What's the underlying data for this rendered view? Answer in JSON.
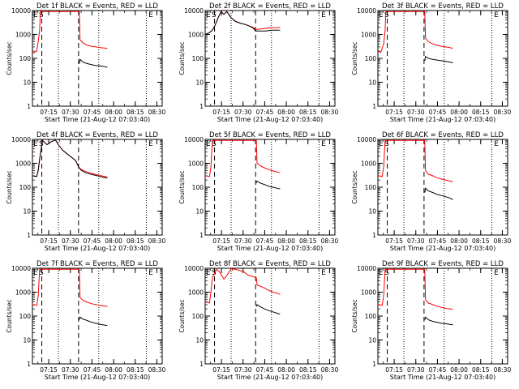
{
  "common": {
    "ylabel": "Counts/sec",
    "xlabel": "Start Time (21-Aug-12 07:03:40)",
    "x_tick_labels": [
      "07:15",
      "07:30",
      "07:45",
      "08:00",
      "08:15",
      "08:30"
    ],
    "y_tick_labels": [
      "1",
      "10",
      "100",
      "1000",
      "10000"
    ],
    "colors": {
      "events": "#000000",
      "lld": "#ff0000"
    }
  },
  "chart_data": [
    {
      "type": "line",
      "title": "Det 1f BLACK = Events, RED = LLD",
      "xlabel": "Start Time (21-Aug-12 07:03:40)",
      "ylabel": "Counts/sec",
      "x_unit": "minutes after 07:03:40",
      "xlim": [
        0,
        90
      ],
      "ylim": [
        1,
        10000
      ],
      "y_scale": "log",
      "x_ticks": [
        11.3,
        26.3,
        41.3,
        56.3,
        71.3,
        86.3
      ],
      "annotations": [
        "E",
        "S",
        "E"
      ],
      "dashed_lines_x": [
        6.5,
        32
      ],
      "dotted_lines_x": [
        18,
        46,
        79
      ],
      "series": [
        {
          "name": "LLD",
          "color": "#ff0000",
          "x": [
            0,
            1,
            2,
            3,
            4,
            5,
            5.5,
            32.5,
            33,
            35,
            38,
            41,
            44,
            47,
            50,
            52
          ],
          "y": [
            180,
            170,
            190,
            200,
            500,
            1500,
            9000,
            9000,
            600,
            450,
            350,
            320,
            300,
            280,
            270,
            260
          ]
        },
        {
          "name": "Events",
          "color": "#000000",
          "x": [
            32.5,
            33,
            35,
            38,
            41,
            44,
            47,
            50,
            52
          ],
          "y": [
            60,
            90,
            70,
            60,
            55,
            50,
            48,
            45,
            42
          ]
        }
      ]
    },
    {
      "type": "line",
      "title": "Det 2f BLACK = Events, RED = LLD",
      "xlabel": "Start Time (21-Aug-12 07:03:40)",
      "ylabel": "Counts/sec",
      "x_unit": "minutes after 07:03:40",
      "xlim": [
        0,
        90
      ],
      "ylim": [
        1,
        10000
      ],
      "y_scale": "log",
      "x_ticks": [
        11.3,
        26.3,
        41.3,
        56.3,
        71.3,
        86.3
      ],
      "annotations": [
        "E",
        "S",
        "E"
      ],
      "dashed_lines_x": [
        6.5,
        35
      ],
      "dotted_lines_x": [
        18,
        46,
        79
      ],
      "series": [
        {
          "name": "LLD",
          "color": "#ff0000",
          "x": [
            0,
            3,
            5,
            7,
            9,
            11,
            13,
            15,
            18,
            21,
            24,
            28,
            31,
            33,
            35,
            38,
            42,
            46,
            50,
            52
          ],
          "y": [
            1000,
            1200,
            1500,
            2500,
            5000,
            9000,
            7000,
            9000,
            5000,
            3500,
            3000,
            2600,
            2200,
            2000,
            1600,
            1700,
            1800,
            1900,
            1900,
            2000
          ]
        },
        {
          "name": "Events",
          "color": "#000000",
          "x": [
            0,
            3,
            5,
            7,
            9,
            11,
            13,
            15,
            18,
            21,
            24,
            28,
            31,
            33,
            35,
            38,
            42,
            46,
            50,
            52
          ],
          "y": [
            1000,
            1200,
            1500,
            2500,
            5000,
            9000,
            7000,
            9000,
            5000,
            3500,
            3000,
            2600,
            2200,
            1900,
            1400,
            1400,
            1400,
            1500,
            1500,
            1500
          ]
        }
      ]
    },
    {
      "type": "line",
      "title": "Det 3f BLACK = Events, RED = LLD",
      "xlabel": "Start Time (21-Aug-12 07:03:40)",
      "ylabel": "Counts/sec",
      "x_unit": "minutes after 07:03:40",
      "xlim": [
        0,
        90
      ],
      "ylim": [
        1,
        10000
      ],
      "y_scale": "log",
      "x_ticks": [
        11.3,
        26.3,
        41.3,
        56.3,
        71.3,
        86.3
      ],
      "annotations": [
        "E",
        "S",
        "E"
      ],
      "dashed_lines_x": [
        6.5,
        32
      ],
      "dotted_lines_x": [
        18,
        46,
        79
      ],
      "series": [
        {
          "name": "LLD",
          "color": "#ff0000",
          "x": [
            0,
            2,
            4,
            5,
            5.5,
            32.5,
            33,
            35,
            38,
            41,
            44,
            47,
            50,
            52
          ],
          "y": [
            200,
            180,
            400,
            1500,
            9000,
            9000,
            700,
            500,
            400,
            350,
            320,
            300,
            280,
            260
          ]
        },
        {
          "name": "Events",
          "color": "#000000",
          "x": [
            32.5,
            33,
            35,
            38,
            41,
            44,
            47,
            50,
            52
          ],
          "y": [
            80,
            120,
            100,
            90,
            85,
            80,
            75,
            70,
            65
          ]
        }
      ]
    },
    {
      "type": "line",
      "title": "Det 4f BLACK = Events, RED = LLD",
      "xlabel": "Start Time (21-Aug-12 07:03:40)",
      "ylabel": "Counts/sec",
      "x_unit": "minutes after 07:03:40",
      "xlim": [
        0,
        90
      ],
      "ylim": [
        1,
        10000
      ],
      "y_scale": "log",
      "x_ticks": [
        11.3,
        26.3,
        41.3,
        56.3,
        71.3,
        86.3
      ],
      "annotations": [
        "E",
        "S",
        "E"
      ],
      "dashed_lines_x": [
        6.5,
        32
      ],
      "dotted_lines_x": [
        18,
        46,
        79
      ],
      "series": [
        {
          "name": "LLD",
          "color": "#ff0000",
          "x": [
            0,
            3,
            4,
            5,
            7,
            10,
            13,
            16,
            18,
            21,
            24,
            27,
            30,
            32,
            34,
            37,
            41,
            45,
            49,
            52
          ],
          "y": [
            300,
            280,
            500,
            1500,
            9000,
            6000,
            8000,
            9500,
            6000,
            3500,
            2500,
            1800,
            1300,
            700,
            550,
            450,
            380,
            330,
            290,
            270
          ]
        },
        {
          "name": "Events",
          "color": "#000000",
          "x": [
            0,
            3,
            4,
            5,
            7,
            10,
            13,
            16,
            18,
            21,
            24,
            27,
            30,
            32,
            34,
            37,
            41,
            45,
            49,
            52
          ],
          "y": [
            300,
            280,
            500,
            1500,
            9000,
            6000,
            8000,
            9500,
            6000,
            3500,
            2500,
            1800,
            1300,
            700,
            500,
            400,
            340,
            300,
            260,
            240
          ]
        }
      ]
    },
    {
      "type": "line",
      "title": "Det 5f BLACK = Events, RED = LLD",
      "xlabel": "Start Time (21-Aug-12 07:03:40)",
      "ylabel": "Counts/sec",
      "x_unit": "minutes after 07:03:40",
      "xlim": [
        0,
        90
      ],
      "ylim": [
        1,
        10000
      ],
      "y_scale": "log",
      "x_ticks": [
        11.3,
        26.3,
        41.3,
        56.3,
        71.3,
        86.3
      ],
      "annotations": [
        "E",
        "S",
        "E"
      ],
      "dashed_lines_x": [
        6.5,
        35
      ],
      "dotted_lines_x": [
        18,
        46,
        79
      ],
      "series": [
        {
          "name": "LLD",
          "color": "#ff0000",
          "x": [
            0,
            3,
            4,
            5,
            35.5,
            36,
            38,
            41,
            44,
            47,
            50,
            52
          ],
          "y": [
            300,
            280,
            700,
            9000,
            9000,
            1000,
            800,
            650,
            550,
            480,
            430,
            400
          ]
        },
        {
          "name": "Events",
          "color": "#000000",
          "x": [
            35.5,
            36,
            38,
            41,
            44,
            47,
            50,
            52
          ],
          "y": [
            150,
            180,
            150,
            130,
            110,
            100,
            90,
            85
          ]
        }
      ]
    },
    {
      "type": "line",
      "title": "Det 6f BLACK = Events, RED = LLD",
      "xlabel": "Start Time (21-Aug-12 07:03:40)",
      "ylabel": "Counts/sec",
      "x_unit": "minutes after 07:03:40",
      "xlim": [
        0,
        90
      ],
      "ylim": [
        1,
        10000
      ],
      "y_scale": "log",
      "x_ticks": [
        11.3,
        26.3,
        41.3,
        56.3,
        71.3,
        86.3
      ],
      "annotations": [
        "E",
        "S",
        "E"
      ],
      "dashed_lines_x": [
        6.5,
        32
      ],
      "dotted_lines_x": [
        18,
        46,
        79
      ],
      "series": [
        {
          "name": "LLD",
          "color": "#ff0000",
          "x": [
            0,
            3,
            4,
            5,
            32.5,
            33,
            35,
            38,
            41,
            44,
            47,
            50,
            52
          ],
          "y": [
            300,
            280,
            700,
            9000,
            9000,
            500,
            350,
            300,
            250,
            220,
            200,
            180,
            170
          ]
        },
        {
          "name": "Events",
          "color": "#000000",
          "x": [
            32.5,
            33,
            35,
            38,
            41,
            44,
            47,
            50,
            52
          ],
          "y": [
            60,
            90,
            70,
            60,
            50,
            45,
            40,
            35,
            30
          ]
        }
      ]
    },
    {
      "type": "line",
      "title": "Det 7f BLACK = Events, RED = LLD",
      "xlabel": "Start Time (21-Aug-12 07:03:40)",
      "ylabel": "Counts/sec",
      "x_unit": "minutes after 07:03:40",
      "xlim": [
        0,
        90
      ],
      "ylim": [
        1,
        10000
      ],
      "y_scale": "log",
      "x_ticks": [
        11.3,
        26.3,
        41.3,
        56.3,
        71.3,
        86.3
      ],
      "annotations": [
        "E",
        "S",
        "E"
      ],
      "dashed_lines_x": [
        6.5,
        32
      ],
      "dotted_lines_x": [
        18,
        46,
        79
      ],
      "series": [
        {
          "name": "LLD",
          "color": "#ff0000",
          "x": [
            0,
            3,
            4,
            5,
            32.5,
            33,
            35,
            38,
            41,
            44,
            47,
            50,
            52
          ],
          "y": [
            300,
            280,
            700,
            9000,
            9000,
            600,
            450,
            380,
            330,
            300,
            280,
            260,
            250
          ]
        },
        {
          "name": "Events",
          "color": "#000000",
          "x": [
            32.5,
            33,
            35,
            38,
            41,
            44,
            47,
            50,
            52
          ],
          "y": [
            70,
            90,
            75,
            65,
            55,
            50,
            45,
            42,
            40
          ]
        }
      ]
    },
    {
      "type": "line",
      "title": "Det 8f BLACK = Events, RED = LLD",
      "xlabel": "Start Time (21-Aug-12 07:03:40)",
      "ylabel": "Counts/sec",
      "x_unit": "minutes after 07:03:40",
      "xlim": [
        0,
        90
      ],
      "ylim": [
        1,
        10000
      ],
      "y_scale": "log",
      "x_ticks": [
        11.3,
        26.3,
        41.3,
        56.3,
        71.3,
        86.3
      ],
      "annotations": [
        "E",
        "S",
        "E"
      ],
      "dashed_lines_x": [
        6.5,
        35
      ],
      "dotted_lines_x": [
        18,
        46,
        79
      ],
      "series": [
        {
          "name": "LLD",
          "color": "#ff0000",
          "x": [
            0,
            3,
            4,
            5,
            8,
            10,
            13,
            15,
            18,
            21,
            24,
            27,
            30,
            33,
            35.5,
            36,
            38,
            41,
            44,
            47,
            50,
            52
          ],
          "y": [
            400,
            350,
            1000,
            4000,
            9000,
            7000,
            3500,
            5000,
            9500,
            9000,
            8000,
            7000,
            5000,
            4500,
            4000,
            2000,
            1800,
            1500,
            1200,
            1000,
            900,
            800
          ]
        },
        {
          "name": "Events",
          "color": "#000000",
          "x": [
            35.5,
            36,
            38,
            41,
            44,
            47,
            50,
            52
          ],
          "y": [
            250,
            300,
            250,
            200,
            170,
            150,
            130,
            120
          ]
        }
      ]
    },
    {
      "type": "line",
      "title": "Det 9f BLACK = Events, RED = LLD",
      "xlabel": "Start Time (21-Aug-12 07:03:40)",
      "ylabel": "Counts/sec",
      "x_unit": "minutes after 07:03:40",
      "xlim": [
        0,
        90
      ],
      "ylim": [
        1,
        10000
      ],
      "y_scale": "log",
      "x_ticks": [
        11.3,
        26.3,
        41.3,
        56.3,
        71.3,
        86.3
      ],
      "annotations": [
        "E",
        "S",
        "E"
      ],
      "dashed_lines_x": [
        6.5,
        32
      ],
      "dotted_lines_x": [
        18,
        46,
        79
      ],
      "series": [
        {
          "name": "LLD",
          "color": "#ff0000",
          "x": [
            0,
            3,
            4,
            5,
            32.5,
            33,
            35,
            38,
            41,
            44,
            47,
            50,
            52
          ],
          "y": [
            300,
            280,
            700,
            9000,
            9000,
            500,
            350,
            300,
            260,
            230,
            210,
            200,
            190
          ]
        },
        {
          "name": "Events",
          "color": "#000000",
          "x": [
            32.5,
            33,
            35,
            38,
            41,
            44,
            47,
            50,
            52
          ],
          "y": [
            70,
            90,
            70,
            60,
            55,
            50,
            48,
            45,
            43
          ]
        }
      ]
    }
  ]
}
